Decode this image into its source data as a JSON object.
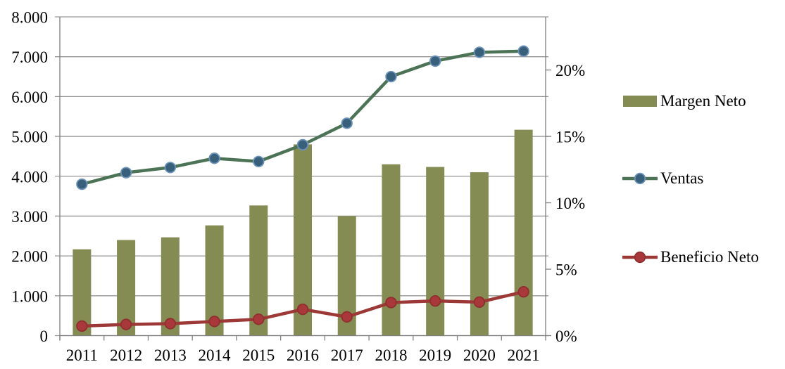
{
  "chart_data": {
    "type": "combo-bar-line",
    "title": "",
    "categories": [
      "2011",
      "2012",
      "2013",
      "2014",
      "2015",
      "2016",
      "2017",
      "2018",
      "2019",
      "2020",
      "2021"
    ],
    "series": [
      {
        "name": "Margen Neto",
        "type": "bar",
        "axis": "right",
        "unit": "percent",
        "values": [
          6.5,
          7.2,
          7.4,
          8.3,
          9.8,
          14.4,
          9.0,
          12.9,
          12.7,
          12.3,
          15.5
        ]
      },
      {
        "name": "Ventas",
        "type": "line",
        "axis": "left",
        "values": [
          3800,
          4090,
          4220,
          4450,
          4370,
          4790,
          5330,
          6500,
          6890,
          7110,
          7140
        ]
      },
      {
        "name": "Beneficio Neto",
        "type": "line",
        "axis": "left",
        "values": [
          240,
          280,
          300,
          355,
          410,
          660,
          470,
          830,
          870,
          840,
          1100
        ]
      }
    ],
    "left_axis": {
      "min": 0,
      "max": 8000,
      "tick_labels": [
        "8.000",
        "7.000",
        "6.000",
        "5.000",
        "4.000",
        "3.000",
        "2.000",
        "1.000",
        "0"
      ]
    },
    "right_axis": {
      "min": 0,
      "max": 24,
      "tick_values": [
        20,
        15,
        10,
        5,
        0
      ],
      "tick_labels": [
        "20%",
        "15%",
        "10%",
        "5%",
        "0%"
      ]
    },
    "legend_position": "right",
    "grid": true
  },
  "colors": {
    "bar": "#858C53",
    "ventas_line": "#4C7355",
    "ventas_marker_fill": "#38607A",
    "ventas_marker_stroke": "#6E93BA",
    "beneficio_line": "#9C3937",
    "beneficio_marker_fill": "#A8383A",
    "beneficio_marker_stroke": "#8F2F2F",
    "gridline": "#969696",
    "axis": "#808080",
    "text": "#000000",
    "background": "#FFFFFF"
  }
}
